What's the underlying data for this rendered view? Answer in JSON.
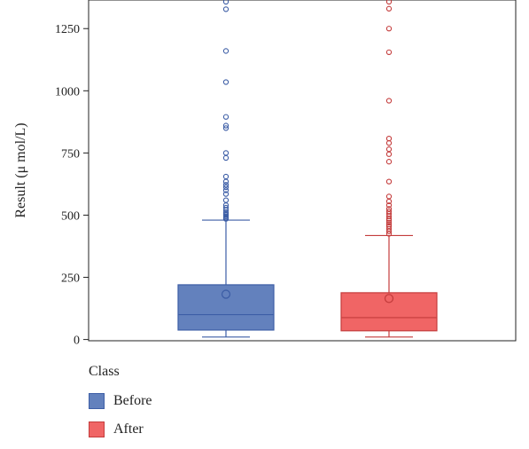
{
  "chart_data": {
    "type": "box",
    "title": "",
    "ylabel": "Result (μ mol/L)",
    "xlabel": "",
    "ylim": [
      -5,
      1365
    ],
    "yticks": [
      0,
      250,
      500,
      750,
      1000,
      1250
    ],
    "grid": false,
    "legend": {
      "title": "Class",
      "placement": "bottom-left"
    },
    "series": [
      {
        "name": "Before",
        "color": "#6381bd",
        "stroke": "#3d5ea6",
        "whisker_low": 10,
        "q1": 38,
        "median": 100,
        "q3": 220,
        "whisker_high": 480,
        "mean": 182,
        "outliers": [
          485,
          490,
          495,
          500,
          505,
          510,
          520,
          530,
          540,
          560,
          585,
          600,
          612,
          622,
          635,
          655,
          730,
          750,
          850,
          860,
          895,
          1035,
          1160,
          1328,
          1358
        ]
      },
      {
        "name": "After",
        "color": "#f06565",
        "stroke": "#c43c3c",
        "whisker_low": 10,
        "q1": 35,
        "median": 88,
        "q3": 188,
        "whisker_high": 418,
        "mean": 165,
        "outliers": [
          425,
          435,
          445,
          455,
          462,
          470,
          478,
          485,
          495,
          505,
          515,
          525,
          540,
          555,
          575,
          635,
          715,
          745,
          765,
          790,
          808,
          960,
          1155,
          1250,
          1330,
          1358
        ]
      }
    ]
  }
}
